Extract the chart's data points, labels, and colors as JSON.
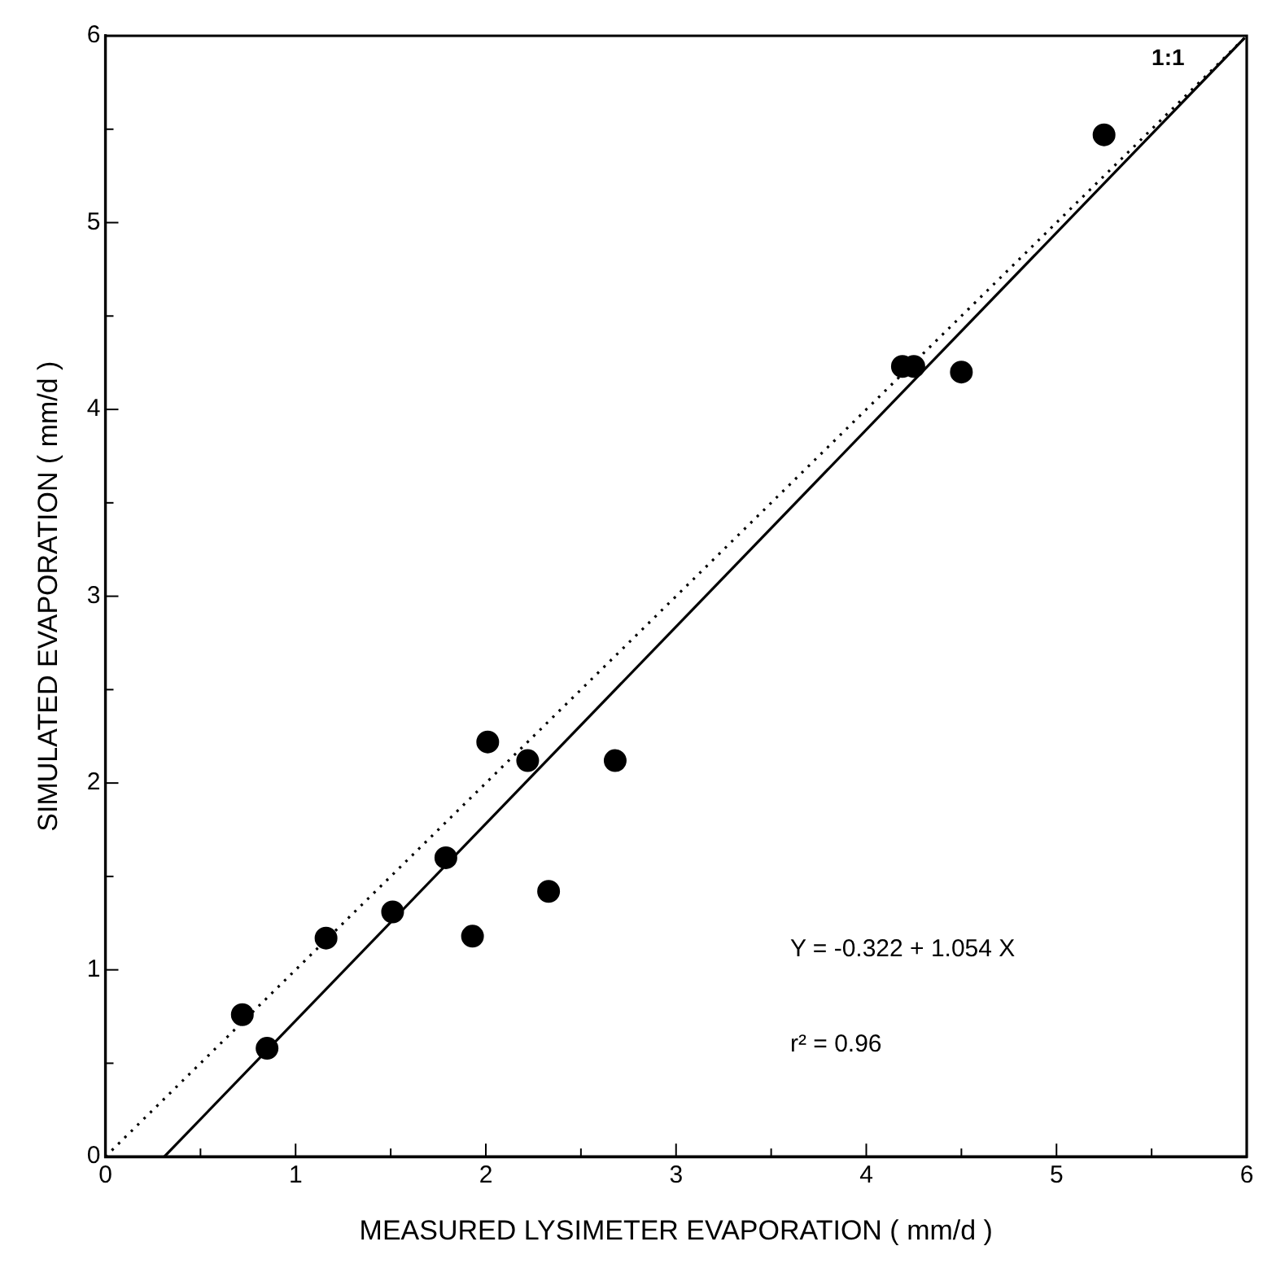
{
  "chart_data": {
    "type": "scatter",
    "xlabel": "MEASURED LYSIMETER EVAPORATION ( mm/d )",
    "ylabel": "SIMULATED EVAPORATION ( mm/d )",
    "xlim": [
      0,
      6
    ],
    "ylim": [
      0,
      6
    ],
    "xticks": [
      0,
      {
        "value": 0.5,
        "label": null
      },
      1,
      {
        "value": 1.5,
        "label": null
      },
      2,
      {
        "value": 2.5,
        "label": null
      },
      3,
      {
        "value": 3.5,
        "label": null
      },
      4,
      {
        "value": 4.5,
        "label": null
      },
      5,
      {
        "value": 5.5,
        "label": null
      },
      6
    ],
    "yticks": [
      0,
      {
        "value": 0.5,
        "label": null
      },
      1,
      {
        "value": 1.5,
        "label": null
      },
      2,
      {
        "value": 2.5,
        "label": null
      },
      3,
      {
        "value": 3.5,
        "label": null
      },
      4,
      {
        "value": 4.5,
        "label": null
      },
      5,
      {
        "value": 5.5,
        "label": null
      },
      6
    ],
    "grid": false,
    "legend": false,
    "marker": "circle",
    "series": [
      {
        "color": "#000000",
        "x": [
          0.72,
          0.85,
          1.16,
          1.51,
          1.79,
          1.93,
          2.01,
          2.22,
          2.33,
          2.68,
          4.19,
          4.25,
          4.5,
          5.25
        ],
        "values": [
          0.76,
          0.58,
          1.17,
          1.31,
          1.6,
          1.18,
          2.22,
          2.12,
          1.42,
          2.12,
          4.23,
          4.23,
          4.2,
          5.47
        ]
      },
      {
        "type": "line",
        "color": "#000000",
        "line_style": "dotted",
        "marker": "none",
        "x": [
          0,
          6
        ],
        "values": [
          0,
          6
        ]
      },
      {
        "type": "line",
        "color": "#000000",
        "line_style": "solid",
        "marker": "none",
        "x": [
          0.31,
          5.99
        ],
        "values": [
          0,
          5.99
        ]
      }
    ],
    "annotations": [
      {
        "text": "1:1",
        "x": 5.5,
        "y": 5.5
      },
      "Y = -0.322 + 1.054 X",
      "r² = 0.96"
    ]
  }
}
